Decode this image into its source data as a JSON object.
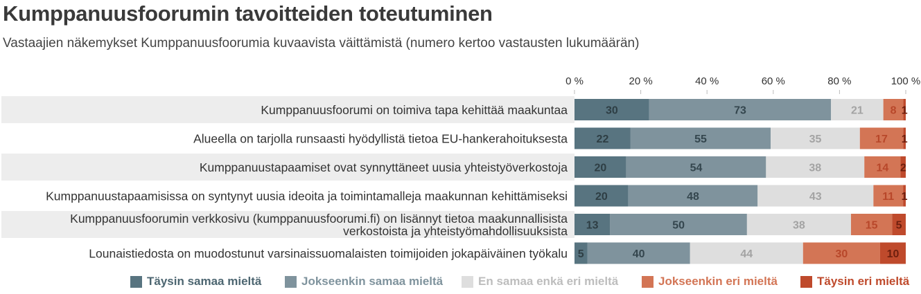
{
  "title": "Kumppanuusfoorumin tavoitteiden toteutuminen",
  "subtitle": "Vastaajien näkemykset Kumppanuusfoorumia kuvaavista väittämistä (numero kertoo vastausten lukumäärän)",
  "chart_data": {
    "type": "bar",
    "orientation": "horizontal",
    "stacking": "percent",
    "xlim": [
      0,
      100
    ],
    "x_ticks": [
      "0 %",
      "20 %",
      "40 %",
      "60 %",
      "80 %",
      "100 %"
    ],
    "legend_position": "bottom",
    "categories": [
      [
        "Kumppanuusfoorumi on toimiva tapa kehittää maakuntaa"
      ],
      [
        "Alueella on tarjolla runsaasti hyödyllistä tietoa EU-hankerahoituksesta"
      ],
      [
        "Kumppanuustapaamiset ovat synnyttäneet uusia yhteistyöverkostoja"
      ],
      [
        "Kumppanuustapaamisissa on syntynyt uusia ideoita ja toimintamalleja maakunnan kehittämiseksi"
      ],
      [
        "Kumppanuusfoorumin verkkosivu (kumppanuusfoorumi.fi) on lisännyt tietoa maakunnallisista",
        "verkostoista ja yhteistyömahdollisuuksista"
      ],
      [
        "Lounaistiedosta on muodostunut varsinaissuomalaisten toimijoiden jokapäiväinen työkalu"
      ]
    ],
    "series": [
      {
        "name": "Täysin samaa mieltä",
        "color": "#587480",
        "label_color": "#2e3e44",
        "values": [
          30,
          22,
          20,
          20,
          13,
          5
        ]
      },
      {
        "name": "Jokseenkin samaa mieltä",
        "color": "#7f939d",
        "label_color": "#34464e",
        "values": [
          73,
          55,
          54,
          48,
          50,
          40
        ]
      },
      {
        "name": "En samaa enkä eri mieltä",
        "color": "#dedede",
        "label_color": "#a3a3a3",
        "values": [
          21,
          35,
          38,
          43,
          38,
          44
        ]
      },
      {
        "name": "Jokseenkin eri mieltä",
        "color": "#d37555",
        "label_color": "#b8472a",
        "values": [
          8,
          17,
          14,
          11,
          15,
          30
        ]
      },
      {
        "name": "Täysin eri mieltä",
        "color": "#bf4a2c",
        "label_color": "#6e1f0e",
        "values": [
          1,
          1,
          2,
          1,
          5,
          10
        ]
      }
    ]
  }
}
